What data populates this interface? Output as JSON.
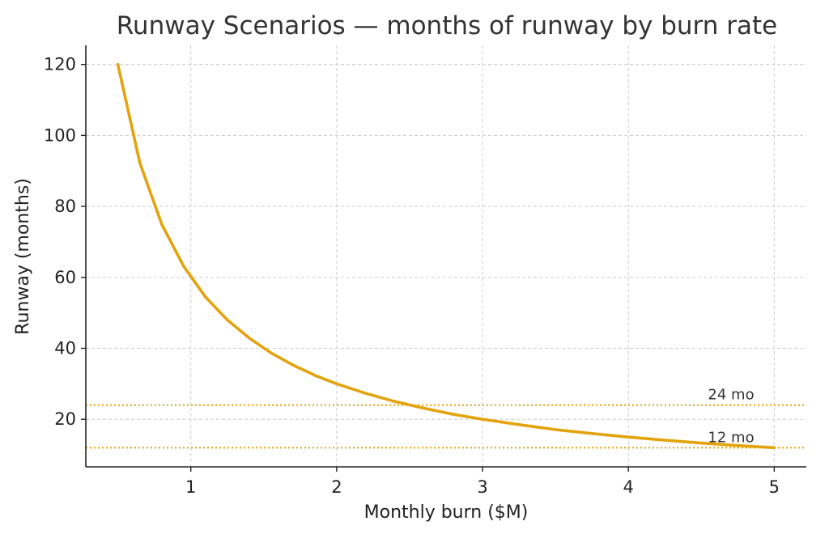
{
  "chart_data": {
    "type": "line",
    "title": "Runway Scenarios — months of runway by burn rate",
    "xlabel": "Monthly burn ($M)",
    "ylabel": "Runway (months)",
    "xlim": [
      0.28,
      5.22
    ],
    "ylim": [
      6.6,
      125.4
    ],
    "xticks": [
      1,
      2,
      3,
      4,
      5
    ],
    "yticks": [
      20,
      40,
      60,
      80,
      100,
      120
    ],
    "grid": true,
    "series": [
      {
        "color": "#e3a30e",
        "x": [
          0.5,
          0.65,
          0.8,
          0.95,
          1.1,
          1.25,
          1.4,
          1.55,
          1.7,
          1.85,
          2.0,
          2.2,
          2.4,
          2.6,
          2.8,
          3.0,
          3.25,
          3.5,
          3.75,
          4.0,
          4.25,
          4.5,
          4.75,
          5.0
        ],
        "y": [
          120.0,
          92.3,
          75.0,
          63.2,
          54.5,
          48.0,
          42.9,
          38.7,
          35.3,
          32.4,
          30.0,
          27.3,
          25.0,
          23.1,
          21.4,
          20.0,
          18.5,
          17.1,
          16.0,
          15.0,
          14.1,
          13.3,
          12.6,
          12.0
        ]
      }
    ],
    "reference_lines": [
      {
        "y": 24,
        "label": "24 mo",
        "color": "#e3a30e"
      },
      {
        "y": 12,
        "label": "12 mo",
        "color": "#e3a30e"
      }
    ]
  }
}
